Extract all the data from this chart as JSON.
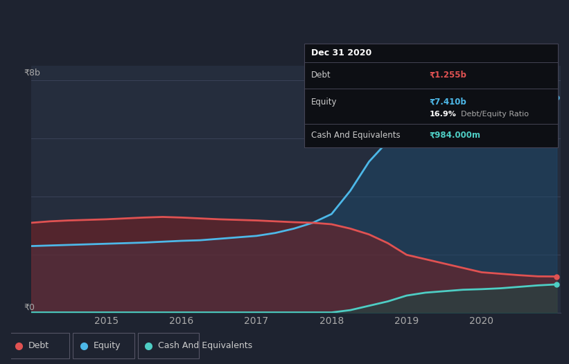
{
  "bg_color": "#1e2330",
  "plot_bg_color": "#252d3d",
  "grid_color": "#3a4257",
  "x_years": [
    2014.0,
    2014.25,
    2014.5,
    2014.75,
    2015.0,
    2015.25,
    2015.5,
    2015.75,
    2016.0,
    2016.25,
    2016.5,
    2016.75,
    2017.0,
    2017.25,
    2017.5,
    2017.75,
    2018.0,
    2018.25,
    2018.5,
    2018.75,
    2019.0,
    2019.25,
    2019.5,
    2019.75,
    2020.0,
    2020.25,
    2020.5,
    2020.75,
    2021.0
  ],
  "debt": [
    3.1,
    3.15,
    3.18,
    3.2,
    3.22,
    3.25,
    3.28,
    3.3,
    3.28,
    3.25,
    3.22,
    3.2,
    3.18,
    3.15,
    3.12,
    3.1,
    3.05,
    2.9,
    2.7,
    2.4,
    2.0,
    1.85,
    1.7,
    1.55,
    1.4,
    1.35,
    1.3,
    1.26,
    1.255
  ],
  "equity": [
    2.3,
    2.32,
    2.34,
    2.36,
    2.38,
    2.4,
    2.42,
    2.45,
    2.48,
    2.5,
    2.55,
    2.6,
    2.65,
    2.75,
    2.9,
    3.1,
    3.4,
    4.2,
    5.2,
    5.9,
    6.3,
    6.6,
    6.8,
    6.9,
    7.0,
    7.1,
    7.2,
    7.35,
    7.41
  ],
  "cash": [
    0.02,
    0.02,
    0.02,
    0.02,
    0.02,
    0.02,
    0.02,
    0.02,
    0.02,
    0.02,
    0.02,
    0.02,
    0.02,
    0.02,
    0.02,
    0.02,
    0.02,
    0.1,
    0.25,
    0.4,
    0.6,
    0.7,
    0.75,
    0.8,
    0.82,
    0.85,
    0.9,
    0.95,
    0.984
  ],
  "debt_color": "#e05252",
  "equity_color": "#4db8e8",
  "cash_color": "#4ecdc4",
  "debt_fill": "#7a2020",
  "equity_fill": "#1a4a6e",
  "cash_fill": "#1a4a44",
  "xticks": [
    2015,
    2016,
    2017,
    2018,
    2019,
    2020
  ],
  "xlim": [
    2014.0,
    2021.05
  ],
  "ylim": [
    0,
    8.5
  ],
  "ylabel_8b": "₹8b",
  "ylabel_0": "₹0",
  "tooltip_title": "Dec 31 2020",
  "tooltip_debt_label": "Debt",
  "tooltip_debt_value": "₹1.255b",
  "tooltip_equity_label": "Equity",
  "tooltip_equity_value": "₹7.410b",
  "tooltip_ratio": "16.9%",
  "tooltip_ratio_label": "Debt/Equity Ratio",
  "tooltip_cash_label": "Cash And Equivalents",
  "tooltip_cash_value": "₹984.000m",
  "legend_debt": "Debt",
  "legend_equity": "Equity",
  "legend_cash": "Cash And Equivalents",
  "separator_color": "#444455",
  "tooltip_bg": "#0d0f14",
  "text_light": "#cccccc",
  "text_white": "#ffffff"
}
